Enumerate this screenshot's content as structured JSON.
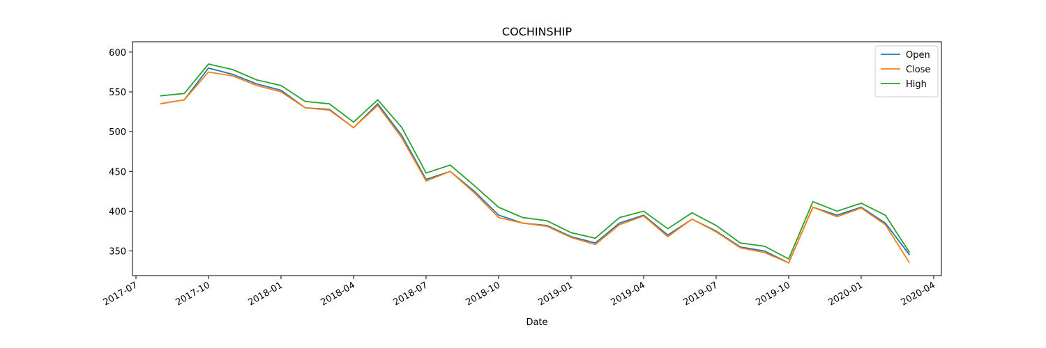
{
  "chart_data": {
    "type": "line",
    "title": "COCHINSHIP",
    "xlabel": "Date",
    "x": [
      "2017-08",
      "2017-09",
      "2017-10",
      "2017-11",
      "2017-12",
      "2018-01",
      "2018-02",
      "2018-03",
      "2018-04",
      "2018-05",
      "2018-06",
      "2018-07",
      "2018-08",
      "2018-09",
      "2018-10",
      "2018-11",
      "2018-12",
      "2019-01",
      "2019-02",
      "2019-03",
      "2019-04",
      "2019-05",
      "2019-06",
      "2019-07",
      "2019-08",
      "2019-09",
      "2019-10",
      "2019-11",
      "2019-12",
      "2020-01",
      "2020-02",
      "2020-03"
    ],
    "series": [
      {
        "name": "Open",
        "color": "#1f77b4",
        "values": [
          535,
          540,
          580,
          572,
          560,
          552,
          530,
          528,
          505,
          535,
          495,
          440,
          450,
          425,
          395,
          385,
          382,
          368,
          360,
          385,
          395,
          370,
          390,
          375,
          355,
          350,
          335,
          405,
          395,
          405,
          385,
          345
        ]
      },
      {
        "name": "Close",
        "color": "#ff7f0e",
        "values": [
          535,
          540,
          575,
          570,
          558,
          550,
          530,
          527,
          505,
          533,
          492,
          438,
          450,
          423,
          392,
          385,
          381,
          367,
          358,
          383,
          394,
          368,
          390,
          374,
          354,
          348,
          335,
          405,
          393,
          404,
          383,
          335
        ]
      },
      {
        "name": "High",
        "color": "#2ca02c",
        "values": [
          545,
          548,
          585,
          578,
          565,
          558,
          538,
          535,
          512,
          540,
          505,
          448,
          458,
          432,
          405,
          392,
          388,
          373,
          366,
          392,
          400,
          378,
          398,
          382,
          360,
          356,
          340,
          412,
          400,
          410,
          395,
          348
        ]
      }
    ],
    "xlim": [
      "2017-07",
      "2020-04"
    ],
    "xticks": [
      "2017-07",
      "2017-10",
      "2018-01",
      "2018-04",
      "2018-07",
      "2018-10",
      "2019-01",
      "2019-04",
      "2019-07",
      "2019-10",
      "2020-01",
      "2020-04"
    ],
    "ylim": [
      319,
      613
    ],
    "yticks": [
      350,
      400,
      450,
      500,
      550,
      600
    ],
    "legend": "upper right"
  }
}
